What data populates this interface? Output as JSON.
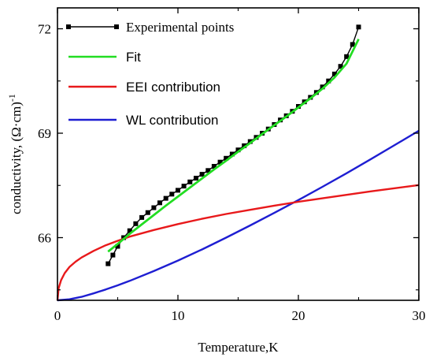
{
  "chart_data": {
    "type": "line",
    "title": "",
    "xlabel": "Temperature,K",
    "ylabel": "conductivity, (Ω·cm)",
    "ylabel_sup": "-1",
    "xlim": [
      0,
      30
    ],
    "ylim": [
      64.2,
      72.6
    ],
    "xticks": [
      0,
      10,
      20,
      30
    ],
    "xtick_labels": [
      "0",
      "10",
      "20",
      "30"
    ],
    "yticks": [
      66,
      69,
      72
    ],
    "ytick_labels": [
      "66",
      "69",
      "72"
    ],
    "grid": false,
    "legend_position": "top-left",
    "series": [
      {
        "name": "Experimental points",
        "style": "line+square-markers",
        "color": "#000000",
        "x": [
          4.2,
          4.6,
          5.0,
          5.5,
          6.0,
          6.5,
          7.0,
          7.5,
          8.0,
          8.5,
          9.0,
          9.5,
          10.0,
          10.5,
          11.0,
          11.5,
          12.0,
          12.5,
          13.0,
          13.5,
          14.0,
          14.5,
          15.0,
          15.5,
          16.0,
          16.5,
          17.0,
          17.5,
          18.0,
          18.5,
          19.0,
          19.5,
          20.0,
          20.5,
          21.0,
          21.5,
          22.0,
          22.5,
          23.0,
          23.5,
          24.0,
          24.5,
          25.0
        ],
        "y": [
          65.25,
          65.5,
          65.75,
          66.0,
          66.2,
          66.4,
          66.58,
          66.72,
          66.86,
          67.0,
          67.13,
          67.25,
          67.36,
          67.48,
          67.6,
          67.71,
          67.82,
          67.93,
          68.05,
          68.17,
          68.28,
          68.4,
          68.52,
          68.64,
          68.76,
          68.88,
          69.0,
          69.12,
          69.25,
          69.38,
          69.5,
          69.63,
          69.77,
          69.9,
          70.03,
          70.17,
          70.33,
          70.5,
          70.7,
          70.92,
          71.2,
          71.55,
          72.05
        ]
      },
      {
        "name": "Fit",
        "color": "#22dd22",
        "x": [
          4.2,
          5,
          6,
          7,
          8,
          9,
          10,
          11,
          12,
          13,
          14,
          15,
          16,
          17,
          18,
          19,
          20,
          21,
          22,
          23,
          24,
          25
        ],
        "y": [
          65.6,
          65.82,
          66.11,
          66.38,
          66.65,
          66.92,
          67.18,
          67.44,
          67.7,
          67.96,
          68.21,
          68.47,
          68.72,
          68.98,
          69.23,
          69.48,
          69.74,
          70.0,
          70.28,
          70.6,
          71.0,
          71.7
        ]
      },
      {
        "name": "EEI contribution",
        "color": "#e8191b",
        "x": [
          0,
          0.1,
          0.3,
          0.6,
          1,
          1.5,
          2,
          3,
          4,
          5,
          6,
          8,
          10,
          12,
          14,
          16,
          18,
          20,
          22,
          24,
          26,
          28,
          30
        ],
        "y": [
          64.2,
          64.55,
          64.78,
          64.98,
          65.16,
          65.31,
          65.43,
          65.62,
          65.78,
          65.91,
          66.03,
          66.22,
          66.39,
          66.54,
          66.68,
          66.8,
          66.92,
          67.03,
          67.13,
          67.23,
          67.33,
          67.42,
          67.51
        ]
      },
      {
        "name": "WL contribution",
        "color": "#1e1ed2",
        "x": [
          0,
          1,
          2,
          3,
          4,
          5,
          6,
          8,
          10,
          12,
          14,
          16,
          18,
          20,
          22,
          24,
          26,
          28,
          30
        ],
        "y": [
          64.2,
          64.23,
          64.3,
          64.4,
          64.51,
          64.63,
          64.76,
          65.04,
          65.34,
          65.66,
          66.0,
          66.35,
          66.71,
          67.08,
          67.46,
          67.85,
          68.25,
          68.66,
          69.07
        ]
      }
    ]
  }
}
